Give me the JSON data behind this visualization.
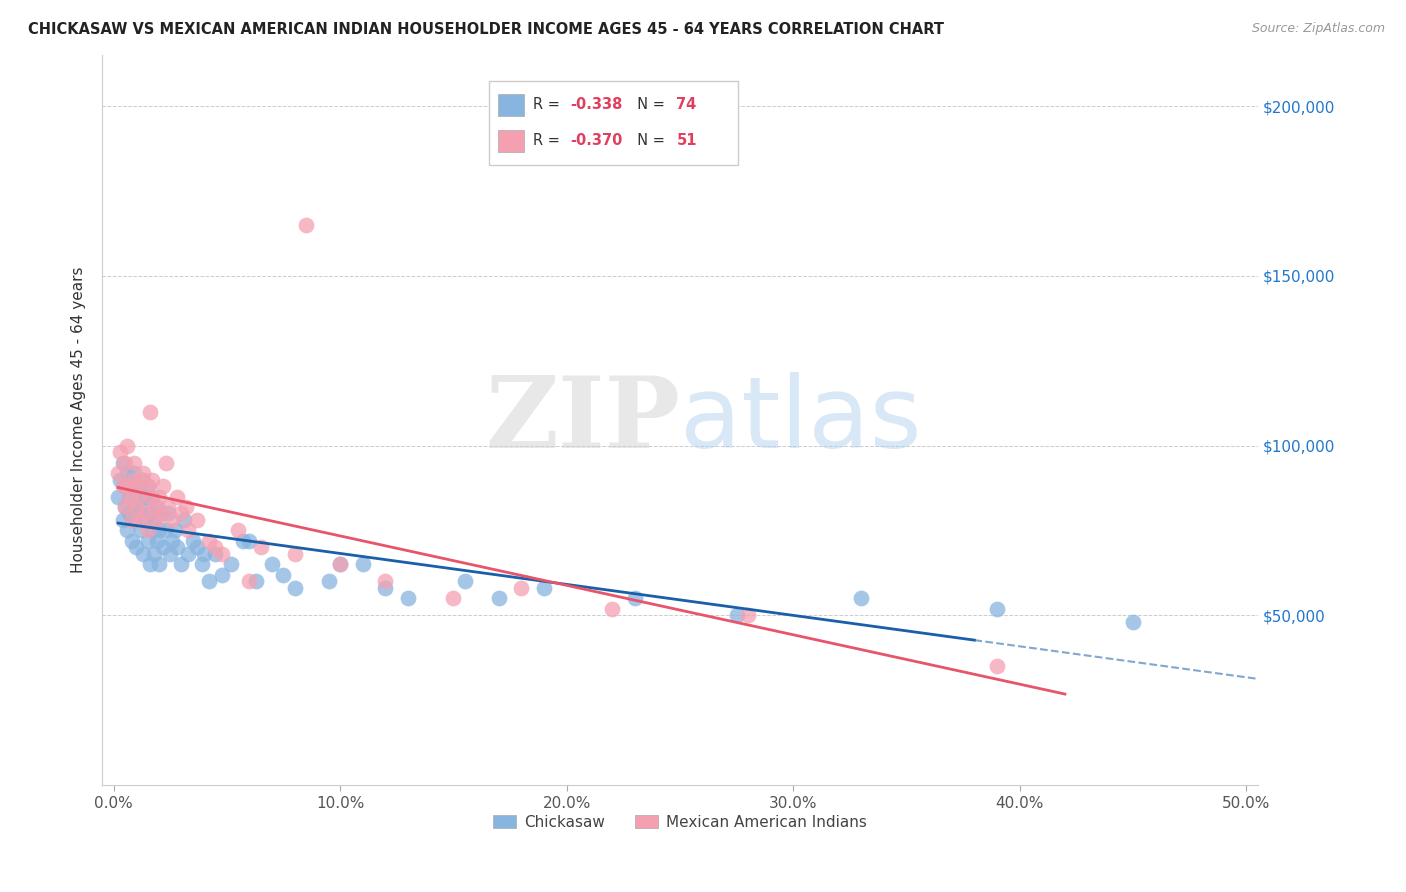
{
  "title": "CHICKASAW VS MEXICAN AMERICAN INDIAN HOUSEHOLDER INCOME AGES 45 - 64 YEARS CORRELATION CHART",
  "source": "Source: ZipAtlas.com",
  "ylabel": "Householder Income Ages 45 - 64 years",
  "xlabel_ticks": [
    "0.0%",
    "10.0%",
    "20.0%",
    "30.0%",
    "40.0%",
    "50.0%"
  ],
  "xlabel_vals": [
    0.0,
    0.1,
    0.2,
    0.3,
    0.4,
    0.5
  ],
  "ytick_labels": [
    "$50,000",
    "$100,000",
    "$150,000",
    "$200,000"
  ],
  "ytick_vals": [
    50000,
    100000,
    150000,
    200000
  ],
  "xlim": [
    -0.005,
    0.505
  ],
  "ylim": [
    0,
    215000
  ],
  "chickasaw_color": "#88b4e0",
  "mexican_color": "#f4a0b0",
  "chickasaw_line_color": "#1a5fa8",
  "mexican_line_color": "#e8556a",
  "legend_label_blue": "Chickasaw",
  "legend_label_pink": "Mexican American Indians",
  "watermark_zip_color": "#c8c8c8",
  "watermark_atlas_color": "#a8c8e8",
  "chickasaw_x": [
    0.002,
    0.003,
    0.004,
    0.004,
    0.005,
    0.005,
    0.006,
    0.006,
    0.007,
    0.007,
    0.008,
    0.008,
    0.009,
    0.009,
    0.01,
    0.01,
    0.011,
    0.011,
    0.012,
    0.012,
    0.013,
    0.013,
    0.014,
    0.014,
    0.015,
    0.015,
    0.016,
    0.016,
    0.017,
    0.017,
    0.018,
    0.018,
    0.019,
    0.019,
    0.02,
    0.02,
    0.021,
    0.022,
    0.023,
    0.024,
    0.025,
    0.026,
    0.027,
    0.028,
    0.03,
    0.031,
    0.033,
    0.035,
    0.037,
    0.039,
    0.042,
    0.045,
    0.048,
    0.052,
    0.057,
    0.063,
    0.07,
    0.08,
    0.095,
    0.11,
    0.13,
    0.155,
    0.19,
    0.23,
    0.275,
    0.33,
    0.39,
    0.45,
    0.04,
    0.06,
    0.075,
    0.1,
    0.12,
    0.17
  ],
  "chickasaw_y": [
    85000,
    90000,
    78000,
    95000,
    82000,
    88000,
    75000,
    92000,
    80000,
    85000,
    88000,
    72000,
    78000,
    92000,
    85000,
    70000,
    80000,
    88000,
    82000,
    75000,
    90000,
    68000,
    85000,
    78000,
    72000,
    88000,
    80000,
    65000,
    85000,
    75000,
    78000,
    68000,
    82000,
    72000,
    75000,
    65000,
    80000,
    70000,
    75000,
    80000,
    68000,
    72000,
    75000,
    70000,
    65000,
    78000,
    68000,
    72000,
    70000,
    65000,
    60000,
    68000,
    62000,
    65000,
    72000,
    60000,
    65000,
    58000,
    60000,
    65000,
    55000,
    60000,
    58000,
    55000,
    50000,
    55000,
    52000,
    48000,
    68000,
    72000,
    62000,
    65000,
    58000,
    55000
  ],
  "mexican_x": [
    0.002,
    0.003,
    0.004,
    0.005,
    0.005,
    0.006,
    0.006,
    0.007,
    0.008,
    0.008,
    0.009,
    0.01,
    0.01,
    0.011,
    0.012,
    0.012,
    0.013,
    0.014,
    0.015,
    0.015,
    0.016,
    0.017,
    0.018,
    0.019,
    0.02,
    0.021,
    0.022,
    0.024,
    0.026,
    0.028,
    0.03,
    0.033,
    0.037,
    0.042,
    0.048,
    0.055,
    0.065,
    0.08,
    0.1,
    0.12,
    0.15,
    0.18,
    0.22,
    0.28,
    0.39,
    0.016,
    0.023,
    0.032,
    0.045,
    0.06,
    0.085
  ],
  "mexican_y": [
    92000,
    98000,
    88000,
    95000,
    82000,
    100000,
    88000,
    85000,
    90000,
    78000,
    95000,
    88000,
    82000,
    85000,
    90000,
    78000,
    92000,
    80000,
    88000,
    75000,
    85000,
    90000,
    82000,
    78000,
    85000,
    80000,
    88000,
    82000,
    78000,
    85000,
    80000,
    75000,
    78000,
    72000,
    68000,
    75000,
    70000,
    68000,
    65000,
    60000,
    55000,
    58000,
    52000,
    50000,
    35000,
    110000,
    95000,
    82000,
    70000,
    60000,
    165000
  ]
}
